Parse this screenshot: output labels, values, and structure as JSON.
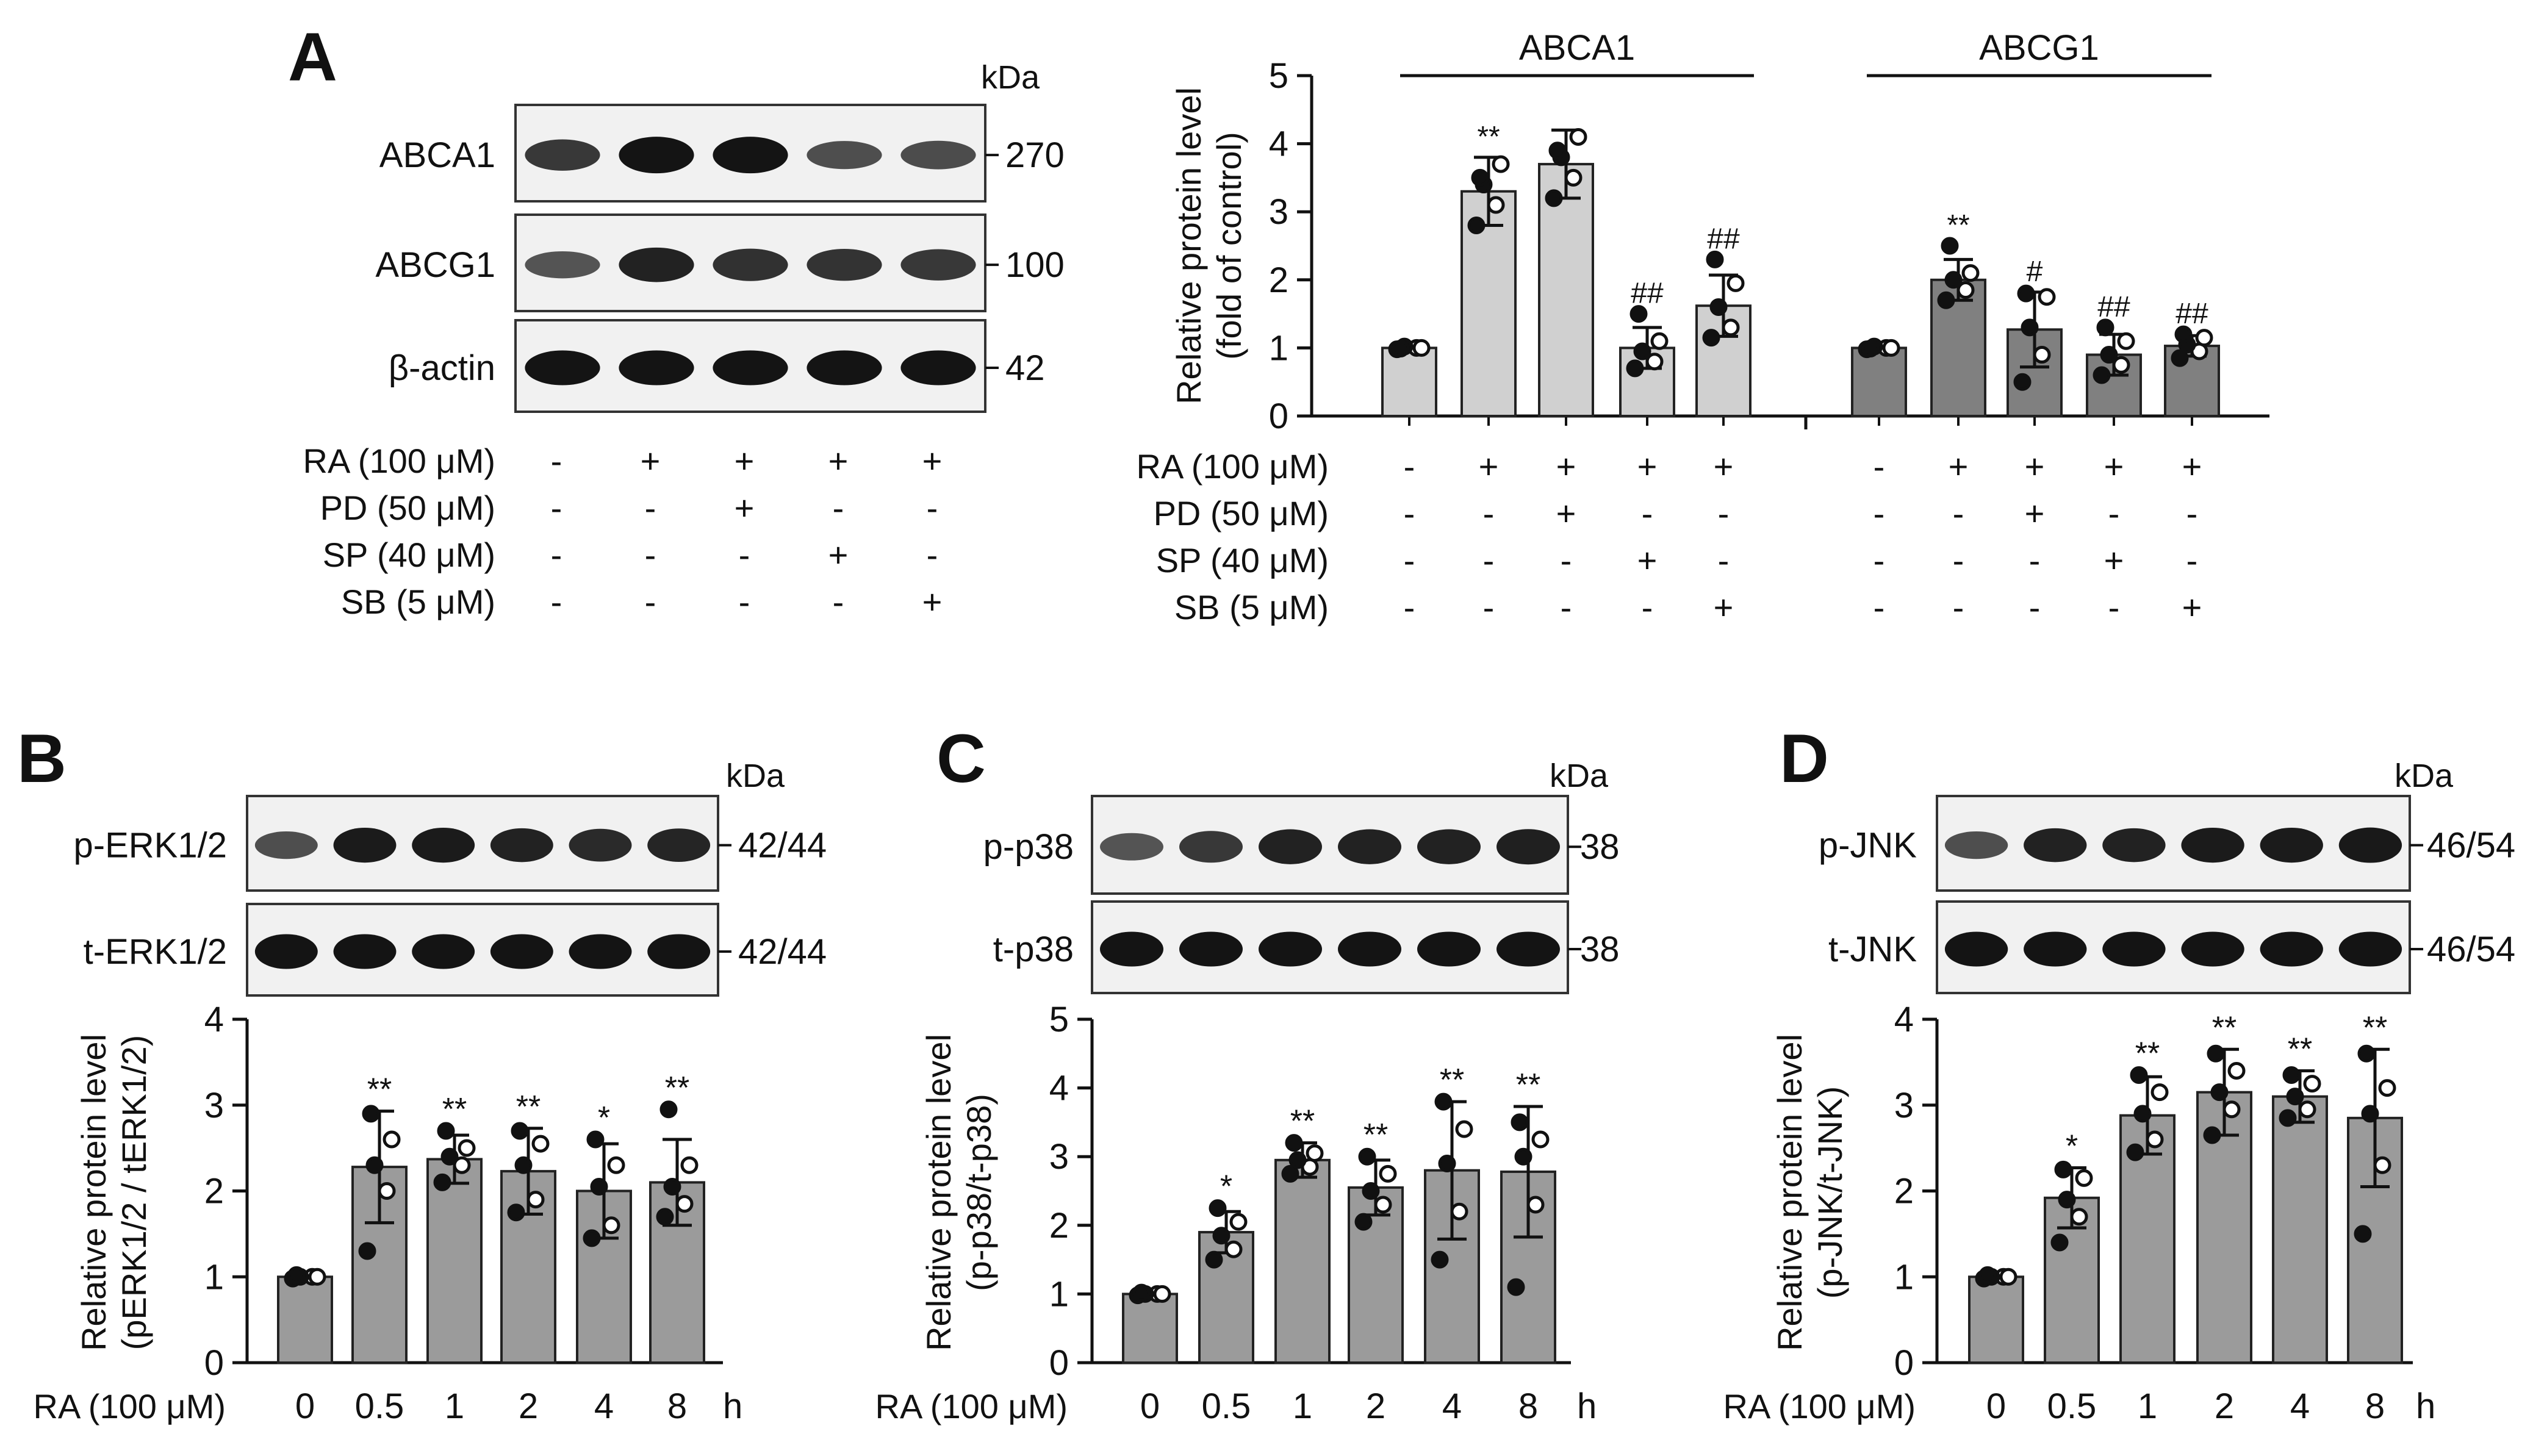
{
  "labels": {
    "kda": "kDa",
    "unit_h": "h",
    "ra_dose": "RA (100 μM)",
    "pd_dose": "PD (50 μM)",
    "sp_dose": "SP (40 μM)",
    "sb_dose": "SB (5 μM)"
  },
  "colors": {
    "bar_light": "#d0d0d0",
    "bar_dark": "#808080",
    "bar_mid": "#9b9b9b",
    "band": "#141414"
  },
  "panel_a": {
    "letter": "A",
    "blots": [
      {
        "label": "ABCA1",
        "marker": "270",
        "intensity": [
          0.75,
          1.0,
          1.0,
          0.6,
          0.62
        ]
      },
      {
        "label": "ABCG1",
        "marker": "100",
        "intensity": [
          0.55,
          0.9,
          0.8,
          0.78,
          0.75
        ]
      },
      {
        "label": "β-actin",
        "marker": "42",
        "intensity": [
          1.0,
          1.0,
          1.0,
          1.0,
          1.0
        ]
      }
    ],
    "treatment_rows": {
      "RA": [
        "-",
        "+",
        "+",
        "+",
        "+"
      ],
      "PD": [
        "-",
        "-",
        "+",
        "-",
        "-"
      ],
      "SP": [
        "-",
        "-",
        "-",
        "+",
        "-"
      ],
      "SB": [
        "-",
        "-",
        "-",
        "-",
        "+"
      ]
    }
  },
  "chart_data": [
    {
      "panel": "A",
      "type": "bar",
      "ylabel": "Relative protein level\n(fold of control)",
      "ylim": [
        0,
        5
      ],
      "yticks": [
        0,
        1,
        2,
        3,
        4,
        5
      ],
      "groups": [
        {
          "name": "ABCA1",
          "values": [
            1.0,
            3.3,
            3.7,
            1.0,
            1.62
          ],
          "errors": [
            0.05,
            0.5,
            0.5,
            0.3,
            0.45
          ],
          "sig": [
            "",
            "**",
            "",
            "##",
            "##"
          ],
          "points": [
            [
              0.98,
              1.0,
              1.02,
              1.0,
              0.99
            ],
            [
              2.8,
              3.1,
              3.4,
              3.7,
              3.5
            ],
            [
              3.2,
              3.5,
              3.8,
              4.1,
              3.9
            ],
            [
              0.7,
              0.8,
              0.95,
              1.1,
              1.5
            ],
            [
              1.15,
              1.3,
              1.6,
              1.95,
              2.3
            ]
          ]
        },
        {
          "name": "ABCG1",
          "values": [
            1.0,
            2.0,
            1.27,
            0.9,
            1.03
          ],
          "errors": [
            0.05,
            0.3,
            0.55,
            0.3,
            0.15
          ],
          "sig": [
            "",
            "**",
            "#",
            "##",
            "##"
          ],
          "points": [
            [
              0.98,
              1.0,
              1.02,
              1.0,
              0.99
            ],
            [
              1.7,
              1.85,
              2.0,
              2.1,
              2.5
            ],
            [
              0.5,
              0.9,
              1.3,
              1.75,
              1.8
            ],
            [
              0.6,
              0.75,
              0.9,
              1.1,
              1.3
            ],
            [
              0.85,
              0.95,
              1.05,
              1.15,
              1.2
            ]
          ]
        }
      ],
      "treatment_rows": {
        "RA": [
          "-",
          "+",
          "+",
          "+",
          "+",
          "-",
          "+",
          "+",
          "+",
          "+"
        ],
        "PD": [
          "-",
          "-",
          "+",
          "-",
          "-",
          "-",
          "-",
          "+",
          "-",
          "-"
        ],
        "SP": [
          "-",
          "-",
          "-",
          "+",
          "-",
          "-",
          "-",
          "-",
          "+",
          "-"
        ],
        "SB": [
          "-",
          "-",
          "-",
          "-",
          "+",
          "-",
          "-",
          "-",
          "-",
          "+"
        ]
      }
    },
    {
      "panel": "B",
      "type": "bar",
      "blots": [
        {
          "label": "p-ERK1/2",
          "marker": "42/44",
          "intensity": [
            0.6,
            0.95,
            0.95,
            0.9,
            0.85,
            0.88
          ]
        },
        {
          "label": "t-ERK1/2",
          "marker": "42/44",
          "intensity": [
            1.0,
            1.0,
            1.0,
            1.0,
            1.0,
            1.0
          ]
        }
      ],
      "categories": [
        "0",
        "0.5",
        "1",
        "2",
        "4",
        "8"
      ],
      "values": [
        1.0,
        2.28,
        2.37,
        2.23,
        2.0,
        2.1
      ],
      "errors": [
        0.02,
        0.65,
        0.28,
        0.5,
        0.55,
        0.5
      ],
      "sig": [
        "",
        "**",
        "**",
        "**",
        "*",
        "**"
      ],
      "points": [
        [
          0.98,
          1.0,
          1.0,
          1.0,
          1.02
        ],
        [
          1.3,
          2.0,
          2.3,
          2.6,
          2.9
        ],
        [
          2.1,
          2.3,
          2.4,
          2.5,
          2.7
        ],
        [
          1.75,
          1.9,
          2.3,
          2.55,
          2.7
        ],
        [
          1.45,
          1.6,
          2.05,
          2.3,
          2.6
        ],
        [
          1.7,
          1.85,
          2.05,
          2.3,
          2.95
        ]
      ],
      "ylabel": "Relative protein level\n(pERK1/2 / tERK1/2)",
      "ylim": [
        0,
        4
      ],
      "yticks": [
        0,
        1,
        2,
        3,
        4
      ]
    },
    {
      "panel": "C",
      "type": "bar",
      "blots": [
        {
          "label": "p-p38",
          "marker": "38",
          "intensity": [
            0.55,
            0.75,
            0.9,
            0.9,
            0.9,
            0.92
          ]
        },
        {
          "label": "t-p38",
          "marker": "38",
          "intensity": [
            1.0,
            1.0,
            1.0,
            1.0,
            1.0,
            1.0
          ]
        }
      ],
      "categories": [
        "0",
        "0.5",
        "1",
        "2",
        "4",
        "8"
      ],
      "values": [
        1.0,
        1.9,
        2.95,
        2.55,
        2.8,
        2.78
      ],
      "errors": [
        0.02,
        0.3,
        0.25,
        0.4,
        1.0,
        0.95
      ],
      "sig": [
        "",
        "*",
        "**",
        "**",
        "**",
        "**"
      ],
      "points": [
        [
          0.98,
          1.0,
          1.0,
          1.0,
          1.02
        ],
        [
          1.5,
          1.65,
          1.85,
          2.05,
          2.25
        ],
        [
          2.75,
          2.85,
          2.95,
          3.05,
          3.2
        ],
        [
          2.05,
          2.3,
          2.5,
          2.75,
          3.0
        ],
        [
          1.5,
          2.2,
          2.9,
          3.4,
          3.8
        ],
        [
          1.1,
          2.3,
          3.0,
          3.25,
          3.5
        ]
      ],
      "ylabel": "Relative protein level\n(p-p38/t-p38)",
      "ylim": [
        0,
        5
      ],
      "yticks": [
        0,
        1,
        2,
        3,
        4,
        5
      ]
    },
    {
      "panel": "D",
      "type": "bar",
      "blots": [
        {
          "label": "p-JNK",
          "marker": "46/54",
          "intensity": [
            0.6,
            0.9,
            0.9,
            0.95,
            0.95,
            0.97
          ]
        },
        {
          "label": "t-JNK",
          "marker": "46/54",
          "intensity": [
            1.0,
            1.0,
            1.0,
            1.0,
            1.0,
            1.0
          ]
        }
      ],
      "categories": [
        "0",
        "0.5",
        "1",
        "2",
        "4",
        "8"
      ],
      "values": [
        1.0,
        1.92,
        2.88,
        3.15,
        3.1,
        2.85
      ],
      "errors": [
        0.02,
        0.35,
        0.45,
        0.5,
        0.3,
        0.8
      ],
      "sig": [
        "",
        "*",
        "**",
        "**",
        "**",
        "**"
      ],
      "points": [
        [
          0.98,
          1.0,
          1.0,
          1.0,
          1.02
        ],
        [
          1.4,
          1.7,
          1.9,
          2.15,
          2.25
        ],
        [
          2.45,
          2.6,
          2.9,
          3.15,
          3.35
        ],
        [
          2.65,
          2.95,
          3.15,
          3.4,
          3.6
        ],
        [
          2.85,
          2.95,
          3.1,
          3.25,
          3.35
        ],
        [
          1.5,
          2.3,
          2.9,
          3.2,
          3.6
        ]
      ],
      "ylabel": "Relative protein level\n(p-JNK/t-JNK)",
      "ylim": [
        0,
        4
      ],
      "yticks": [
        0,
        1,
        2,
        3,
        4
      ]
    }
  ]
}
